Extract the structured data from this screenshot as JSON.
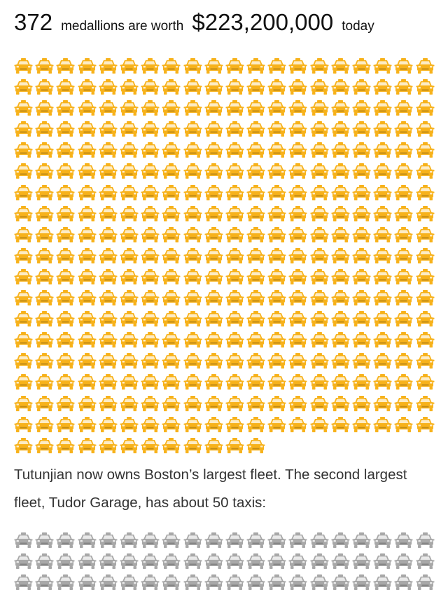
{
  "headline": {
    "count": "372",
    "text_1": "medallions are worth",
    "value": "$223,200,000",
    "text_2": "today"
  },
  "grids": {
    "primary": {
      "icon": "taxi-icon",
      "color": "#F7B21B",
      "count": 372
    },
    "comparison": {
      "icon": "taxi-icon",
      "color": "#A8A8A8"
    }
  },
  "caption": {
    "text": "Tutunjian now owns Boston’s largest fleet. The second largest fleet, Tudor Garage, has about 50 taxis:"
  }
}
